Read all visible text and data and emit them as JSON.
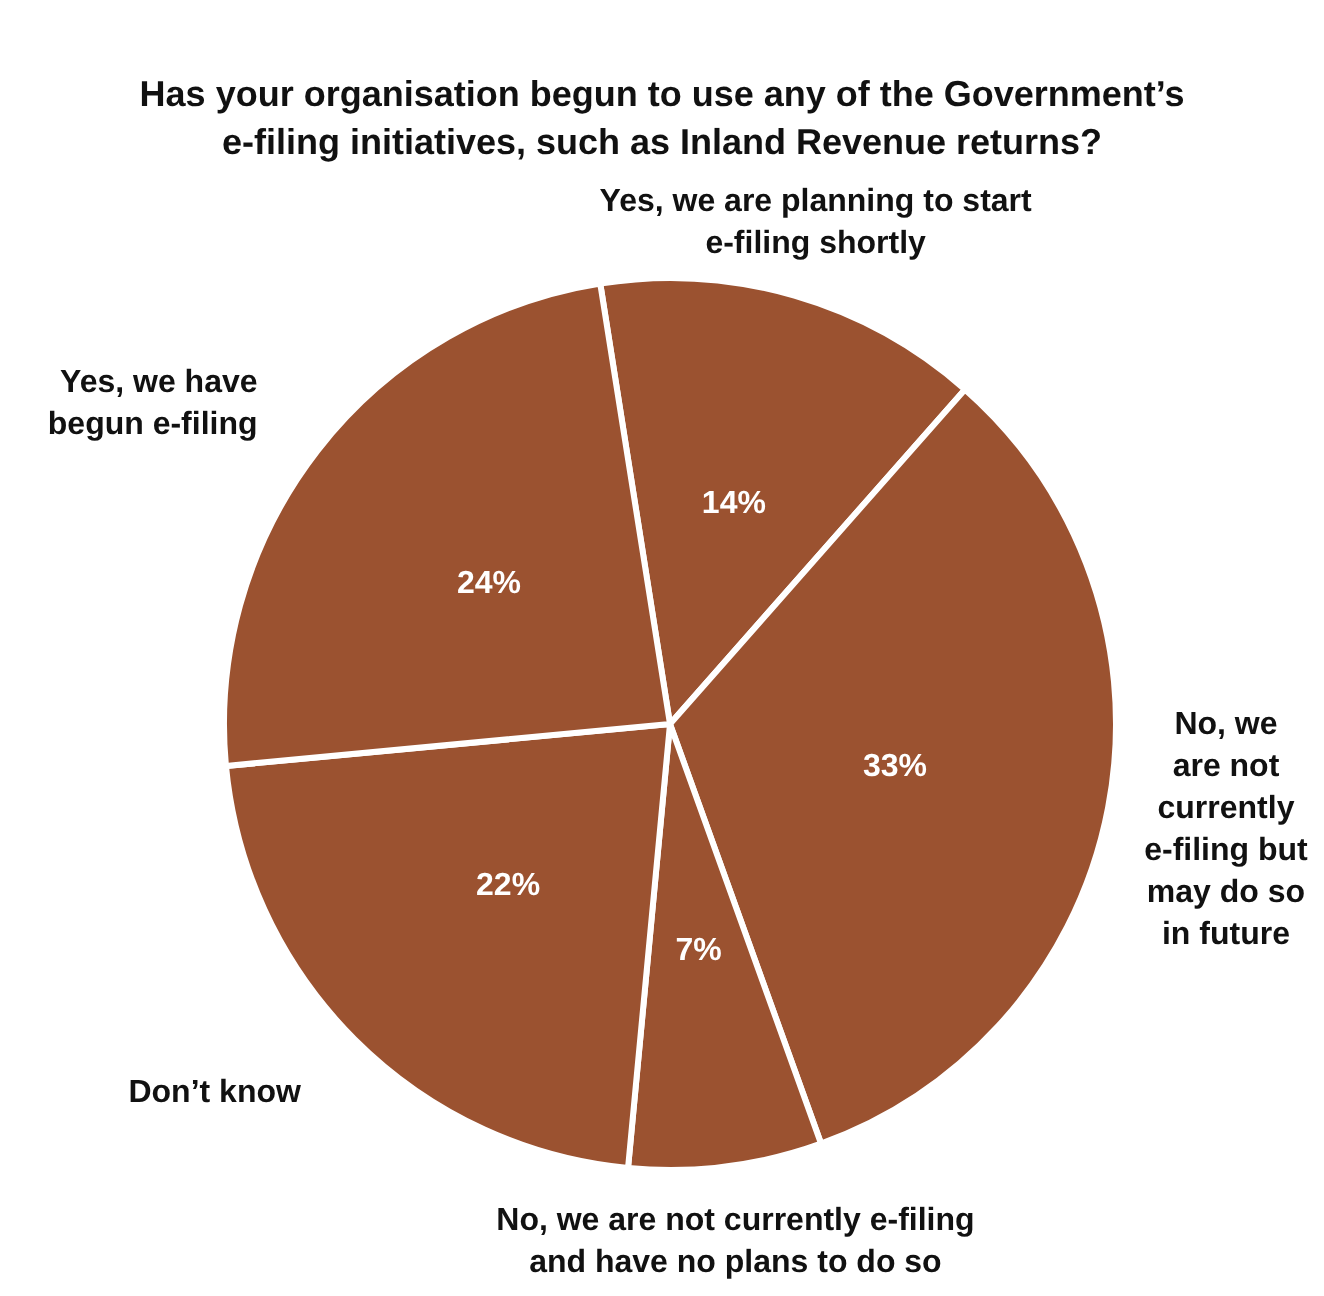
{
  "chart_data": {
    "type": "pie",
    "title": "Has your organisation begun to use any of the Government’s\ne-filing initiatives, such as Inland Revenue returns?",
    "categories": [
      "Yes, we are planning to start\ne-filing shortly",
      "No, we\nare not\ncurrently\ne-filing but\nmay do so\nin future",
      "No, we are not currently e-filing\nand have no plans to do so",
      "Don’t know",
      "Yes, we have\nbegun e-filing"
    ],
    "values": [
      14,
      33,
      7,
      22,
      24
    ],
    "value_labels": [
      "14%",
      "33%",
      "7%",
      "22%",
      "24%"
    ],
    "colors": [
      "#9b5230",
      "#9b5230",
      "#9b5230",
      "#9b5230",
      "#9b5230"
    ],
    "legend": false
  }
}
